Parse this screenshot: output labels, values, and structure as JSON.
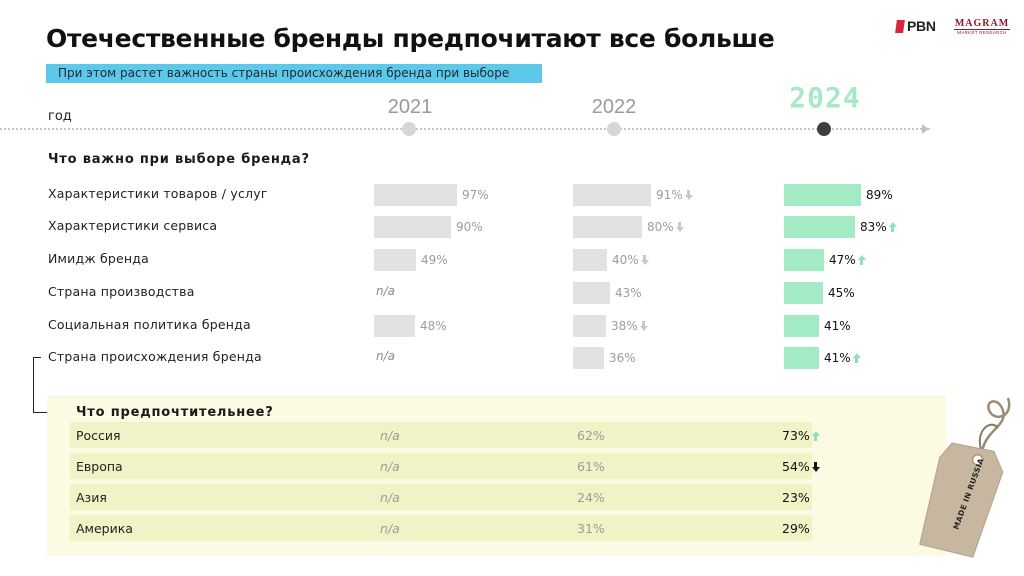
{
  "header": {
    "title": "Отечественные бренды предпочитают все больше",
    "subtitle": "При этом растет важность страны происхождения бренда при выборе"
  },
  "logos": {
    "pbn": "PBN",
    "magram": "MAGRAM",
    "magram_sub": "MARKET RESEARCH"
  },
  "timeline": {
    "label": "год",
    "years": [
      "2021",
      "2022",
      "2024"
    ],
    "current_year": "2024"
  },
  "colors": {
    "accent_subtitle": "#5cc9ea",
    "bar_gray": "#e2e2e2",
    "bar_green": "#a3ebc5",
    "arrow_green": "#8fe2b6",
    "pref_background": "#fafbe2",
    "pref_row": "#eff3c5"
  },
  "chart_data": [
    {
      "type": "bar",
      "title": "Что важно при выборе бренда?",
      "categories": [
        "Характеристики товаров / услуг",
        "Характеристики сервиса",
        "Имидж бренда",
        "Страна производства",
        "Социальная политика бренда",
        "Страна происхождения бренда"
      ],
      "series": [
        {
          "name": "2021",
          "values": [
            97,
            90,
            49,
            null,
            48,
            null
          ],
          "labels": [
            "97%",
            "90%",
            "49%",
            "n/a",
            "48%",
            "n/a"
          ],
          "trend": [
            null,
            null,
            null,
            null,
            null,
            null
          ]
        },
        {
          "name": "2022",
          "values": [
            91,
            80,
            40,
            43,
            38,
            36
          ],
          "labels": [
            "91%",
            "80%",
            "40%",
            "43%",
            "38%",
            "36%"
          ],
          "trend": [
            "down",
            "down",
            "down",
            null,
            "down",
            null
          ]
        },
        {
          "name": "2024",
          "values": [
            89,
            83,
            47,
            45,
            41,
            41
          ],
          "labels": [
            "89%",
            "83%",
            "47%",
            "45%",
            "41%",
            "41%"
          ],
          "trend": [
            null,
            "up",
            "up",
            null,
            null,
            "up"
          ]
        }
      ],
      "unit": "%"
    },
    {
      "type": "table",
      "title": "Что предпочтительнее?",
      "categories": [
        "Россия",
        "Европа",
        "Азия",
        "Америка"
      ],
      "series": [
        {
          "name": "2021",
          "values": [
            null,
            null,
            null,
            null
          ],
          "labels": [
            "n/a",
            "n/a",
            "n/a",
            "n/a"
          ]
        },
        {
          "name": "2022",
          "values": [
            62,
            61,
            24,
            31
          ],
          "labels": [
            "62%",
            "61%",
            "24%",
            "31%"
          ]
        },
        {
          "name": "2024",
          "values": [
            73,
            54,
            23,
            29
          ],
          "labels": [
            "73%",
            "54%",
            "23%",
            "29%"
          ],
          "trend": [
            "up",
            "down",
            null,
            null
          ]
        }
      ]
    }
  ],
  "tag": {
    "text": "MADE IN RUSSIA"
  }
}
